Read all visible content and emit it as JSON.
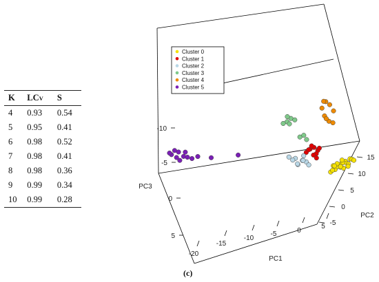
{
  "table": {
    "headers": {
      "k": "K",
      "lcv_main": "LC",
      "lcv_sub": "V",
      "s": "S"
    },
    "rows": [
      {
        "k": "4",
        "lcv": "0.93",
        "s": "0.54"
      },
      {
        "k": "5",
        "lcv": "0.95",
        "s": "0.41"
      },
      {
        "k": "6",
        "lcv": "0.98",
        "s": "0.52"
      },
      {
        "k": "7",
        "lcv": "0.98",
        "s": "0.41"
      },
      {
        "k": "8",
        "lcv": "0.98",
        "s": "0.36"
      },
      {
        "k": "9",
        "lcv": "0.99",
        "s": "0.34"
      },
      {
        "k": "10",
        "lcv": "0.99",
        "s": "0.28"
      }
    ]
  },
  "caption": "(c)",
  "chart_data": {
    "type": "scatter",
    "title": "",
    "axes": {
      "pc1": {
        "label": "PC1",
        "ticks": [
          "-20",
          "-15",
          "-10",
          "-5",
          "0",
          "5"
        ]
      },
      "pc2": {
        "label": "PC2",
        "ticks": [
          "-5",
          "0",
          "5",
          "10",
          "15"
        ]
      },
      "pc3": {
        "label": "PC3",
        "ticks": [
          "-10",
          "-5",
          "0",
          "5"
        ]
      }
    },
    "legend": {
      "placement": "top-left"
    },
    "series": [
      {
        "name": "Cluster 0",
        "color": "#f5e100",
        "points": [
          [
            1,
            7,
            -1.5
          ],
          [
            2,
            8,
            -2
          ],
          [
            1.5,
            6,
            -1
          ],
          [
            2.5,
            9,
            -2.5
          ],
          [
            1,
            5,
            -0.5
          ],
          [
            3,
            10,
            -3
          ],
          [
            2,
            7.5,
            -1.2
          ],
          [
            1.8,
            6.5,
            -1.8
          ],
          [
            2.2,
            8.5,
            -2.2
          ],
          [
            2.6,
            9.5,
            -1.7
          ],
          [
            1.2,
            5.5,
            -0.9
          ],
          [
            3.2,
            10.5,
            -2.7
          ],
          [
            2.8,
            9.8,
            -1.4
          ],
          [
            1.6,
            7,
            -2.4
          ],
          [
            2.4,
            8,
            -0.8
          ],
          [
            2.1,
            7.2,
            -1.6
          ],
          [
            3.4,
            11,
            -2.2
          ],
          [
            1.4,
            6,
            -2.1
          ],
          [
            2.9,
            9,
            -1.1
          ],
          [
            2,
            8.8,
            -2.8
          ]
        ]
      },
      {
        "name": "Cluster 1",
        "color": "#e00000",
        "points": [
          [
            -2,
            4,
            -7
          ],
          [
            -1.5,
            4.5,
            -7.5
          ],
          [
            -1,
            5,
            -6.5
          ],
          [
            -2.5,
            3.5,
            -6
          ],
          [
            -1.8,
            4.2,
            -8
          ],
          [
            -1.2,
            4.8,
            -5.5
          ],
          [
            -2.2,
            3.8,
            -6.8
          ],
          [
            -0.8,
            5.2,
            -7.2
          ],
          [
            -1.6,
            4.6,
            -5
          ],
          [
            -1,
            4,
            -4.6
          ]
        ]
      },
      {
        "name": "Cluster 2",
        "color": "#b9d7e6",
        "points": [
          [
            -3,
            3,
            -3.5
          ],
          [
            -4,
            2.5,
            -4
          ],
          [
            -2.5,
            3.5,
            -3
          ],
          [
            -3.5,
            2,
            -2.5
          ],
          [
            -4.5,
            3,
            -3
          ],
          [
            -2,
            3,
            -2.5
          ],
          [
            -3,
            4,
            -4.5
          ],
          [
            -5,
            2.5,
            -4
          ],
          [
            -3.8,
            3.2,
            -2
          ],
          [
            -2.8,
            2.6,
            -3.8
          ]
        ]
      },
      {
        "name": "Cluster 3",
        "color": "#7fc98a",
        "points": [
          [
            -6,
            6,
            -13
          ],
          [
            -5.5,
            6.5,
            -14
          ],
          [
            -6.5,
            5.5,
            -12.5
          ],
          [
            -5,
            7,
            -13.5
          ],
          [
            -6,
            6.2,
            -14.5
          ],
          [
            -5.8,
            6.8,
            -12
          ],
          [
            -4,
            6,
            -9
          ],
          [
            -3.5,
            6.5,
            -9.5
          ],
          [
            -3,
            6.2,
            -8.5
          ]
        ]
      },
      {
        "name": "Cluster 4",
        "color": "#ee8a00",
        "points": [
          [
            -2,
            16,
            -16
          ],
          [
            -1.5,
            16.5,
            -15
          ],
          [
            -2.5,
            15.5,
            -14
          ],
          [
            -1,
            17,
            -13
          ],
          [
            -2,
            15,
            -12
          ],
          [
            -1.5,
            16,
            -10
          ],
          [
            -1,
            16.5,
            -9.5
          ],
          [
            -2.5,
            16.8,
            -15.5
          ],
          [
            -1.8,
            15.4,
            -11
          ]
        ]
      },
      {
        "name": "Cluster 5",
        "color": "#7a1fb5",
        "points": [
          [
            -22,
            -4,
            -1
          ],
          [
            -21,
            -3.5,
            -2
          ],
          [
            -20,
            -4.5,
            -1.5
          ],
          [
            -19,
            -3,
            -0.5
          ],
          [
            -22.5,
            -3,
            -0.8
          ],
          [
            -21.5,
            -4,
            -2.5
          ],
          [
            -20.5,
            -5,
            -0.3
          ],
          [
            -19.5,
            -4,
            -1.2
          ],
          [
            -18,
            -3.5,
            -1.8
          ],
          [
            -21,
            -5,
            -1
          ],
          [
            -20,
            -3.2,
            -2.2
          ],
          [
            -16,
            -3,
            -2
          ],
          [
            -12,
            -2,
            -4
          ]
        ]
      }
    ]
  }
}
